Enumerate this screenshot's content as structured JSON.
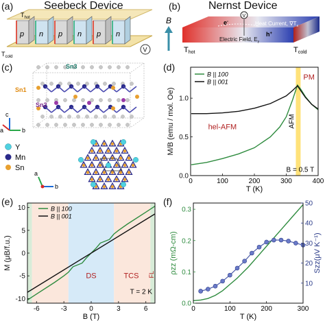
{
  "panels": {
    "a": {
      "label": "(a)",
      "title": "Seebeck Device",
      "t_hot": "T",
      "t_hot_sub": "hot",
      "t_cold": "T",
      "t_cold_sub": "cold",
      "p": "p",
      "n": "n",
      "meter": "V"
    },
    "b": {
      "label": "(b)",
      "title": "Nernst Device",
      "field": "B",
      "t_hot": "T",
      "t_hot_sub": "hot",
      "t_cold": "T",
      "t_cold_sub": "cold",
      "electron": "e",
      "electron_sup": "-",
      "hole": "h",
      "hole_sup": "+",
      "heat_current": "Heat Current, ∇T",
      "heat_sub": "x",
      "efield": "Electric Field, E",
      "efield_sub": "y",
      "meter": "V"
    },
    "c": {
      "label": "(c)",
      "sites": [
        "Sn3",
        "Sn1",
        "Sn2"
      ],
      "axes_top": [
        "c",
        "a",
        "b"
      ],
      "legend": [
        {
          "name": "Y",
          "color": "#4fd1e0"
        },
        {
          "name": "Mn",
          "color": "#2a2a8a"
        },
        {
          "name": "Sn",
          "color": "#e8a030"
        }
      ],
      "axes_bottom": [
        "a",
        "b"
      ]
    },
    "d": {
      "label": "(d)",
      "legend": [
        "B || 100",
        "B || 001"
      ],
      "pm": "PM",
      "afm": "AFM",
      "hel": "hel-AFM",
      "field_note": "B = 0.5 T"
    },
    "e": {
      "label": "(e)",
      "legend": [
        "B || 100",
        "B || 001"
      ],
      "ds": "DS",
      "tcs": "TCS",
      "fl": "FL",
      "temp_note": "T = 2 K"
    },
    "f": {
      "label": "(f)"
    }
  },
  "chart_data": [
    {
      "id": "d",
      "type": "line",
      "xlabel": "T (K)",
      "ylabel": "M/B (emu / mol. Oe)",
      "xlim": [
        0,
        400
      ],
      "ylim": [
        0,
        1.4
      ],
      "xticks": [
        0,
        100,
        200,
        300,
        400
      ],
      "yticks": [
        0.0,
        0.5,
        1.0
      ],
      "series": [
        {
          "name": "B || 100",
          "color": "#2e8b3e",
          "x": [
            2,
            50,
            100,
            150,
            200,
            250,
            280,
            300,
            320,
            335,
            345,
            360,
            380,
            400
          ],
          "y": [
            0.14,
            0.17,
            0.22,
            0.28,
            0.36,
            0.5,
            0.63,
            0.76,
            0.98,
            1.17,
            1.12,
            1.02,
            0.92,
            0.85
          ]
        },
        {
          "name": "B || 001",
          "color": "#111111",
          "x": [
            2,
            50,
            100,
            150,
            200,
            250,
            300,
            320,
            335,
            345,
            360,
            380,
            400
          ],
          "y": [
            0.8,
            0.8,
            0.81,
            0.83,
            0.87,
            0.93,
            1.03,
            1.1,
            1.16,
            1.1,
            1.01,
            0.92,
            0.86
          ]
        }
      ],
      "shaded": [
        {
          "from": 330,
          "to": 345,
          "color": "#ffe27a"
        }
      ]
    },
    {
      "id": "e",
      "type": "line",
      "xlabel": "B (T)",
      "ylabel": "M (μB/f.u.)",
      "xlim": [
        -7,
        7
      ],
      "ylim": [
        -11,
        11
      ],
      "xticks": [
        -6,
        -3,
        0,
        3,
        6
      ],
      "yticks": [
        -10,
        -5,
        0,
        5,
        10
      ],
      "series": [
        {
          "name": "B || 100",
          "color": "#2e8b3e",
          "x": [
            -7,
            -6,
            -4,
            -3,
            -2.5,
            -2,
            -1,
            -0.5,
            0,
            0.5,
            1,
            2,
            2.5,
            3,
            4,
            6,
            7
          ],
          "y": [
            -10.3,
            -9.0,
            -6.4,
            -5.0,
            -4.2,
            -3.0,
            -2.2,
            -1.0,
            0,
            1.0,
            2.2,
            3.0,
            4.2,
            5.0,
            6.4,
            9.0,
            10.3
          ]
        },
        {
          "name": "B || 001",
          "color": "#111111",
          "x": [
            -7,
            7
          ],
          "y": [
            -8.6,
            8.6
          ]
        }
      ],
      "regions": [
        {
          "from": -7,
          "to": -6.5,
          "color": "#d8ecd8"
        },
        {
          "from": -6.5,
          "to": -2.5,
          "color": "#fbe7dc"
        },
        {
          "from": -2.5,
          "to": 2.5,
          "color": "#d6eaf8"
        },
        {
          "from": 2.5,
          "to": 6.5,
          "color": "#fbe7dc"
        },
        {
          "from": 6.5,
          "to": 7,
          "color": "#d8ecd8"
        }
      ]
    },
    {
      "id": "f",
      "type": "line",
      "xlabel": "T (K)",
      "ylabel": "ρzz (mΩ-cm)",
      "y2label": "Szz(μV K⁻¹)",
      "xlim": [
        0,
        300
      ],
      "ylim": [
        0,
        0.32
      ],
      "y2lim": [
        0,
        50
      ],
      "xticks": [
        0,
        100,
        200,
        300
      ],
      "yticks": [
        0.0,
        0.1,
        0.2,
        0.3
      ],
      "y2ticks": [
        10,
        20,
        30,
        40,
        50
      ],
      "series": [
        {
          "name": "rho",
          "color": "#2e8b3e",
          "axis": "left",
          "x": [
            0,
            20,
            40,
            60,
            80,
            100,
            120,
            150,
            180,
            210,
            240,
            270,
            300
          ],
          "y": [
            0.008,
            0.01,
            0.015,
            0.025,
            0.04,
            0.06,
            0.08,
            0.115,
            0.155,
            0.195,
            0.235,
            0.275,
            0.315
          ]
        },
        {
          "name": "S",
          "color": "#4a5aa8",
          "axis": "right",
          "markers": true,
          "x": [
            20,
            40,
            60,
            80,
            100,
            120,
            140,
            160,
            180,
            200,
            220,
            240,
            260,
            280,
            300
          ],
          "y": [
            6,
            7,
            8.5,
            11,
            14,
            17.5,
            21,
            25,
            28,
            30.5,
            31.5,
            31.5,
            31,
            30,
            29
          ]
        }
      ]
    }
  ]
}
